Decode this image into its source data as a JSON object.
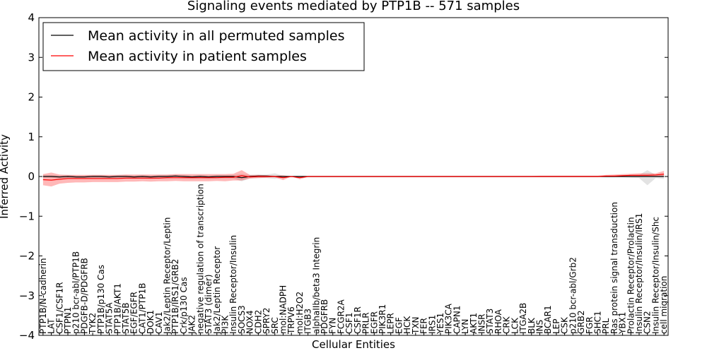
{
  "chart_data": {
    "type": "line",
    "title": "Signaling events mediated by PTP1B -- 571 samples",
    "xlabel": "Cellular Entities",
    "ylabel": "Inferred Activity",
    "ylim": [
      -4,
      4
    ],
    "yticks": [
      4,
      3,
      2,
      1,
      0,
      -1,
      -2,
      -3,
      -4
    ],
    "ytick_labels": [
      "4",
      "3",
      "2",
      "1",
      "0",
      "−1",
      "−2",
      "−3",
      "−4"
    ],
    "legend_position": "top-left",
    "categories": [
      "PTP1B/N-cadherin",
      "LAT",
      "CSF1/CSF1R",
      "PTPN1",
      "p210 bcr-abl/PTP1B",
      "PDGFB-D/PDGFRB",
      "TYK2",
      "PTP1B/p130 Cas",
      "STAT5A",
      "PTP1B/AKT1",
      "STAT5B",
      "EGF/EGFR",
      "CAT1/PTP1B",
      "DOK1",
      "CAV1",
      "Jak2/Leptin Receptor/Leptin",
      "PTP1B/IRS1/GRB2",
      "Crk/p130 Cas",
      "JAK2",
      "negative regulation of transcription",
      "STAT3 (dimer)",
      "Jak2/Leptin Receptor",
      "PI3K",
      "Insulin Receptor/Insulin",
      "SOCS3",
      "NOX4",
      "CDH2",
      "SPRY2",
      "SRC",
      "mol:NADPH",
      "TRPV6",
      "mol:H2O2",
      "ITGB3",
      "alphaIIb/beta3 Integrin",
      "PDGFRB",
      "FYN",
      "FCGR2A",
      "CSF1",
      "CSF1R",
      "PRLR",
      "EGFR",
      "PIK3R1",
      "LEPR",
      "EGF",
      "HCK",
      "TXN",
      "FER",
      "IRS1",
      "YES1",
      "PIK3CA",
      "CAPN1",
      "LYN",
      "AKT1",
      "INSR",
      "STAT3",
      "RHOA",
      "CRK",
      "LCK",
      "ITGA2B",
      "BLK",
      "INS",
      "BCAR1",
      "LEP",
      "CSK",
      "p210 bcr-abl/Grb2",
      "GRB2",
      "FGR",
      "SHC1",
      "PRL",
      "Ras protein signal transduction",
      "YBX1",
      "Prolactin Receptor/Prolactin",
      "Insulin Receptor/Insulin/IRS1",
      "CSN2",
      "Insulin Receptor/Insulin/Shc",
      "cell migration"
    ],
    "series": [
      {
        "name": "Mean activity in all permuted samples",
        "color": "#000000",
        "values": [
          0.0,
          0.0,
          -0.01,
          0.0,
          -0.01,
          -0.01,
          0.0,
          0.0,
          -0.01,
          0.0,
          0.0,
          -0.01,
          0.0,
          -0.01,
          0.0,
          0.0,
          0.01,
          0.0,
          -0.01,
          0.0,
          -0.01,
          0.0,
          0.0,
          0.0,
          -0.03,
          0.0,
          0.01,
          0.01,
          0.0,
          0.0,
          0.0,
          0.0,
          0.0,
          0.0,
          0.0,
          0.0,
          0.0,
          0.0,
          0.0,
          0.0,
          0.0,
          0.0,
          0.0,
          0.0,
          0.0,
          0.0,
          0.0,
          0.0,
          0.0,
          0.0,
          0.0,
          0.0,
          0.0,
          0.0,
          0.0,
          0.0,
          0.0,
          0.0,
          0.0,
          0.0,
          0.0,
          0.0,
          0.0,
          0.0,
          0.0,
          0.0,
          0.0,
          0.0,
          0.0,
          0.0,
          0.0,
          0.0,
          0.0,
          0.0,
          0.0,
          0.0
        ],
        "band_low": [
          -0.04,
          -0.04,
          -0.05,
          -0.04,
          -0.05,
          -0.05,
          -0.04,
          -0.04,
          -0.05,
          -0.04,
          -0.04,
          -0.05,
          -0.05,
          -0.06,
          -0.05,
          -0.05,
          -0.04,
          -0.05,
          -0.06,
          -0.05,
          -0.06,
          -0.05,
          -0.05,
          -0.05,
          -0.12,
          -0.05,
          -0.04,
          -0.04,
          -0.06,
          -0.02,
          -0.02,
          -0.02,
          -0.02,
          -0.02,
          -0.02,
          -0.02,
          -0.02,
          -0.02,
          -0.02,
          -0.02,
          -0.02,
          -0.02,
          -0.02,
          -0.02,
          -0.02,
          -0.02,
          -0.02,
          -0.02,
          -0.02,
          -0.02,
          -0.02,
          -0.02,
          -0.02,
          -0.02,
          -0.02,
          -0.02,
          -0.02,
          -0.02,
          -0.02,
          -0.02,
          -0.02,
          -0.02,
          -0.02,
          -0.02,
          -0.02,
          -0.02,
          -0.02,
          -0.02,
          -0.02,
          -0.02,
          -0.02,
          -0.03,
          -0.04,
          -0.22,
          -0.04,
          -0.06
        ],
        "band_high": [
          0.04,
          0.04,
          0.03,
          0.04,
          0.03,
          0.03,
          0.04,
          0.04,
          0.03,
          0.04,
          0.04,
          0.03,
          0.04,
          0.03,
          0.04,
          0.04,
          0.05,
          0.04,
          0.03,
          0.04,
          0.03,
          0.04,
          0.04,
          0.04,
          0.06,
          0.04,
          0.05,
          0.05,
          0.08,
          0.02,
          0.02,
          0.02,
          0.02,
          0.02,
          0.02,
          0.02,
          0.02,
          0.02,
          0.02,
          0.02,
          0.02,
          0.02,
          0.02,
          0.02,
          0.02,
          0.02,
          0.02,
          0.02,
          0.02,
          0.02,
          0.02,
          0.02,
          0.02,
          0.02,
          0.02,
          0.02,
          0.02,
          0.02,
          0.02,
          0.02,
          0.02,
          0.02,
          0.02,
          0.02,
          0.02,
          0.02,
          0.02,
          0.02,
          0.02,
          0.02,
          0.02,
          0.03,
          0.04,
          0.16,
          0.04,
          0.06
        ]
      },
      {
        "name": "Mean activity in patient samples",
        "color": "#ff0000",
        "values": [
          -0.08,
          -0.09,
          -0.07,
          -0.05,
          -0.05,
          -0.05,
          -0.05,
          -0.05,
          -0.05,
          -0.05,
          -0.04,
          -0.04,
          -0.04,
          -0.04,
          -0.04,
          -0.03,
          -0.03,
          -0.03,
          -0.03,
          -0.03,
          -0.03,
          -0.03,
          -0.02,
          -0.02,
          0.02,
          -0.01,
          0.0,
          0.0,
          0.0,
          -0.03,
          0.0,
          -0.03,
          0.0,
          0.0,
          0.0,
          0.0,
          0.0,
          0.0,
          0.0,
          0.0,
          0.0,
          0.0,
          0.0,
          0.0,
          0.0,
          0.0,
          0.0,
          0.0,
          0.0,
          0.0,
          0.0,
          0.0,
          0.0,
          0.0,
          0.0,
          0.0,
          0.0,
          0.0,
          0.0,
          0.0,
          0.0,
          0.0,
          0.0,
          0.0,
          0.0,
          0.0,
          0.0,
          0.0,
          0.01,
          0.01,
          0.02,
          0.03,
          0.03,
          0.03,
          0.04,
          0.06
        ],
        "band_low": [
          -0.22,
          -0.25,
          -0.18,
          -0.16,
          -0.15,
          -0.15,
          -0.14,
          -0.14,
          -0.14,
          -0.14,
          -0.13,
          -0.13,
          -0.12,
          -0.13,
          -0.12,
          -0.12,
          -0.11,
          -0.12,
          -0.12,
          -0.12,
          -0.12,
          -0.11,
          -0.12,
          -0.1,
          -0.1,
          -0.05,
          -0.04,
          -0.03,
          -0.02,
          -0.09,
          0.0,
          -0.07,
          -0.01,
          -0.01,
          -0.01,
          -0.01,
          -0.01,
          -0.01,
          -0.01,
          -0.01,
          -0.01,
          -0.01,
          -0.01,
          -0.01,
          -0.01,
          -0.01,
          -0.01,
          -0.01,
          -0.01,
          -0.01,
          -0.01,
          -0.01,
          -0.01,
          -0.01,
          -0.01,
          -0.01,
          -0.01,
          -0.01,
          -0.01,
          -0.01,
          -0.01,
          -0.01,
          -0.01,
          -0.01,
          -0.01,
          -0.01,
          -0.01,
          -0.01,
          -0.01,
          -0.01,
          0.0,
          0.0,
          0.0,
          0.0,
          0.0,
          0.0
        ],
        "band_high": [
          0.06,
          0.1,
          0.05,
          0.04,
          0.04,
          0.04,
          0.04,
          0.04,
          0.04,
          0.04,
          0.05,
          0.05,
          0.05,
          0.05,
          0.05,
          0.05,
          0.06,
          0.06,
          0.06,
          0.06,
          0.06,
          0.06,
          0.06,
          0.07,
          0.16,
          0.04,
          0.04,
          0.03,
          0.02,
          0.03,
          0.0,
          0.01,
          0.01,
          0.01,
          0.01,
          0.01,
          0.01,
          0.01,
          0.01,
          0.01,
          0.01,
          0.01,
          0.01,
          0.01,
          0.01,
          0.01,
          0.01,
          0.01,
          0.01,
          0.01,
          0.01,
          0.01,
          0.01,
          0.01,
          0.01,
          0.01,
          0.01,
          0.01,
          0.01,
          0.01,
          0.02,
          0.02,
          0.02,
          0.02,
          0.02,
          0.02,
          0.02,
          0.02,
          0.04,
          0.05,
          0.06,
          0.07,
          0.08,
          0.08,
          0.08,
          0.14
        ]
      }
    ]
  }
}
